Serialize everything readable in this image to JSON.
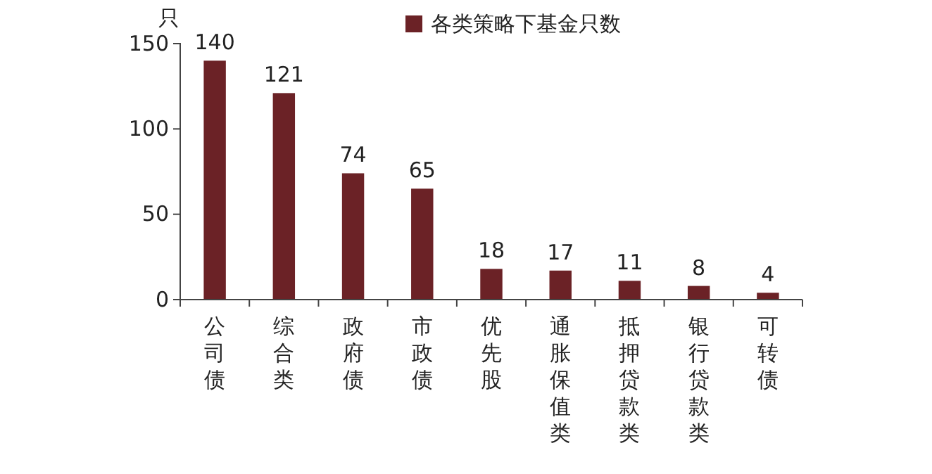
{
  "chart_data": {
    "type": "bar",
    "ylabel": "只",
    "categories": [
      "公司债",
      "综合类",
      "政府债",
      "市政债",
      "优先股",
      "通胀保值类",
      "抵押贷款类",
      "银行贷款类",
      "可转债"
    ],
    "series": [
      {
        "name": "各类策略下基金只数",
        "color": "#6b2226",
        "values": [
          140,
          121,
          74,
          65,
          18,
          17,
          11,
          8,
          4
        ]
      }
    ],
    "ylim": [
      0,
      150
    ],
    "yticks": [
      0,
      50,
      100,
      150
    ],
    "data_labels": true,
    "legend": "top",
    "grid": false
  }
}
